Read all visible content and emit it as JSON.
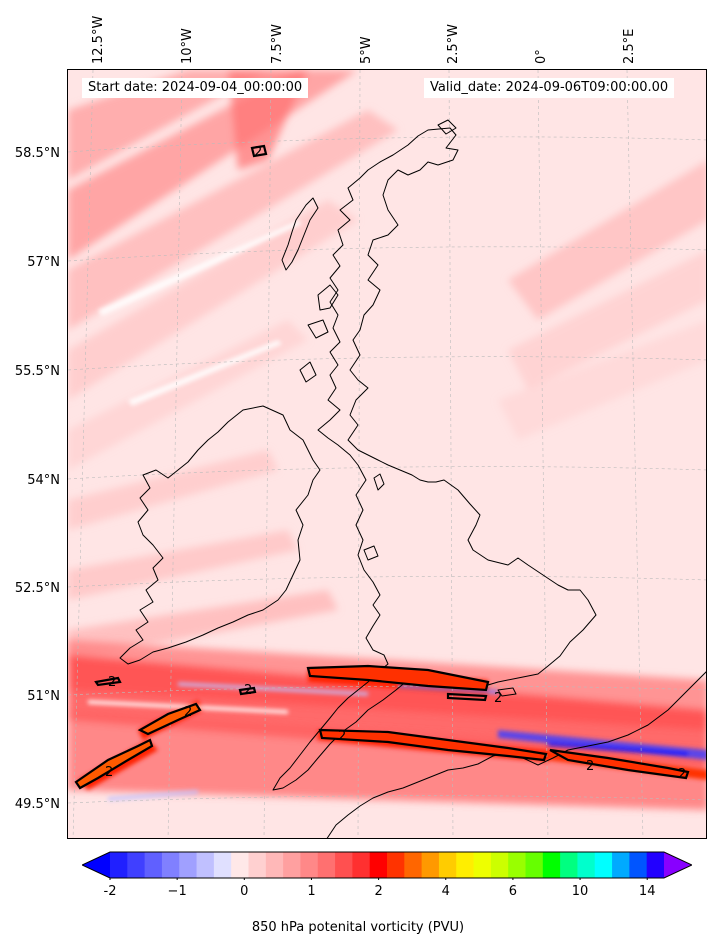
{
  "longitude_labels": [
    "12.5°W",
    "10°W",
    "7.5°W",
    "5°W",
    "2.5°W",
    "0°",
    "2.5°E"
  ],
  "latitude_labels": [
    "58.5°N",
    "57°N",
    "55.5°N",
    "54°N",
    "52.5°N",
    "51°N",
    "49.5°N"
  ],
  "start_date": "Start date: 2024-09-04_00:00:00",
  "valid_date": "Valid_date: 2024-09-06T09:00:00.00",
  "contour_labels": [
    "2",
    "2",
    "2",
    "2",
    "2",
    "2",
    "2",
    "2",
    "2"
  ],
  "colorbar": {
    "label": "850 hPa potenital vorticity (PVU)",
    "ticks": [
      "-2",
      "−1",
      "0",
      "1",
      "2",
      "4",
      "6",
      "10",
      "14"
    ],
    "tick_values": [
      -2,
      -1,
      0,
      1,
      2,
      4,
      6,
      10,
      14
    ],
    "levels": [
      -2,
      -1.75,
      -1.5,
      -1.25,
      -1,
      -0.75,
      -0.5,
      -0.25,
      0,
      0.25,
      0.5,
      0.75,
      1,
      1.25,
      1.5,
      1.75,
      2,
      2.5,
      3,
      3.5,
      4,
      4.5,
      5,
      5.5,
      6,
      7,
      8,
      9,
      10,
      11,
      12,
      13,
      14,
      15
    ],
    "colors": [
      "#0000ff",
      "#2020ff",
      "#4040ff",
      "#6060ff",
      "#8080ff",
      "#a0a0ff",
      "#c0c0ff",
      "#e0e0ff",
      "#ffe8e8",
      "#ffd0d0",
      "#ffb8b8",
      "#ffa0a0",
      "#ff8888",
      "#ff7070",
      "#ff5050",
      "#ff3030",
      "#ff0000",
      "#ff3300",
      "#ff6600",
      "#ff9900",
      "#ffcc00",
      "#ffee00",
      "#eeff00",
      "#ccff00",
      "#99ff00",
      "#66ff00",
      "#00ff00",
      "#00ff80",
      "#00ffcc",
      "#00ffff",
      "#00aaff",
      "#0055ff",
      "#2200ff",
      "#8800ff"
    ],
    "extend": "both"
  },
  "colors": {
    "background": "#ffe5e5",
    "coast": "#000000",
    "grid": "#bbbbbb"
  }
}
